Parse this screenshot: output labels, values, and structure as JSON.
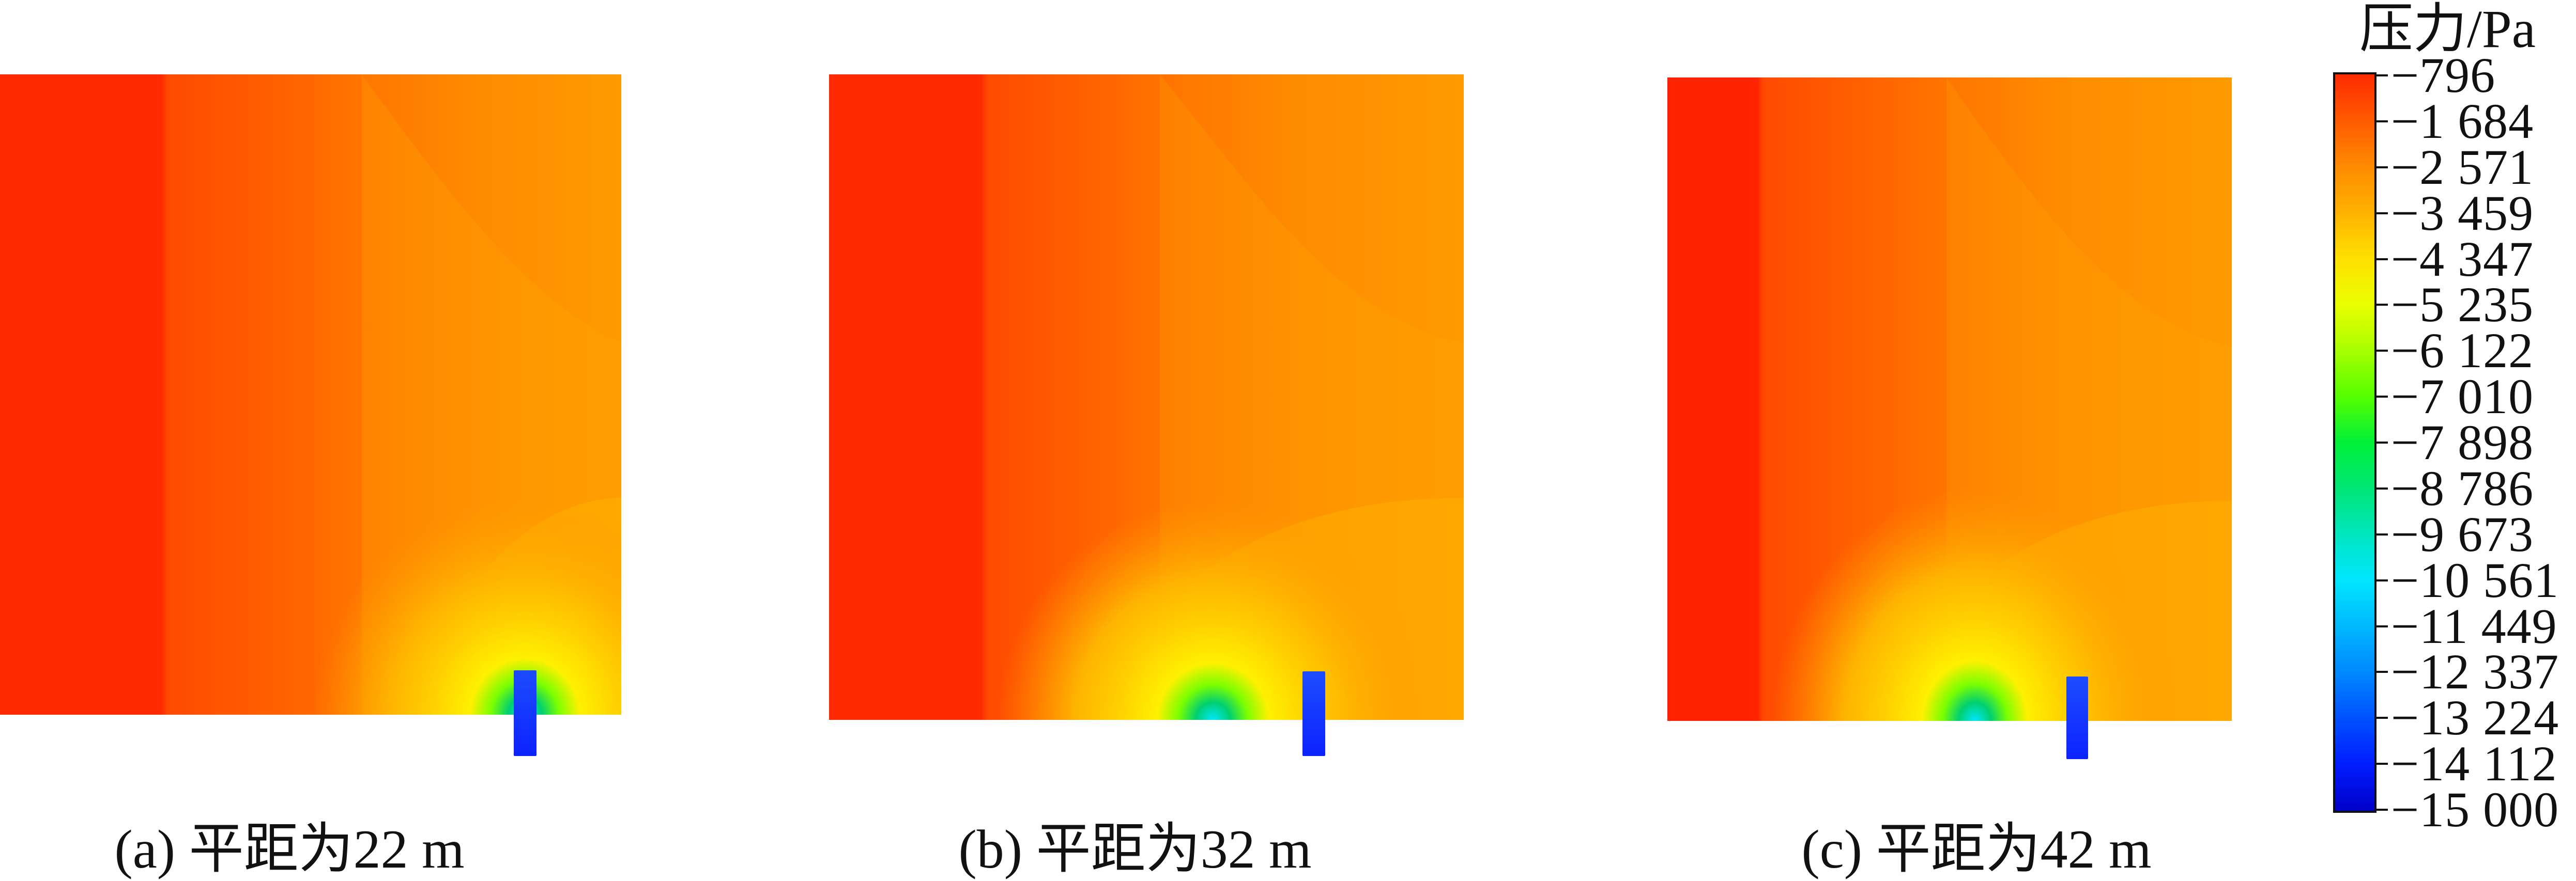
{
  "panels": [
    {
      "caption": "(a) 平距为22 m"
    },
    {
      "caption": "(b) 平距为32 m"
    },
    {
      "caption": "(c) 平距为42 m"
    }
  ],
  "legend": {
    "title": "压力/Pa",
    "labels": [
      "−796",
      "−1 684",
      "−2 571",
      "−3 459",
      "−4 347",
      "−5 235",
      "−6 122",
      "−7 010",
      "−7 898",
      "−8 786",
      "−9 673",
      "−10 561",
      "−11 449",
      "−12 337",
      "−13 224",
      "−14 112",
      "−15 000"
    ]
  },
  "colors": {
    "low": "#0000c8",
    "mid": "#00f03a",
    "high": "#ff2a00",
    "field_left": "#ff2a00",
    "field_right": "#ff9a00",
    "pipe": "#1f3cff"
  }
}
